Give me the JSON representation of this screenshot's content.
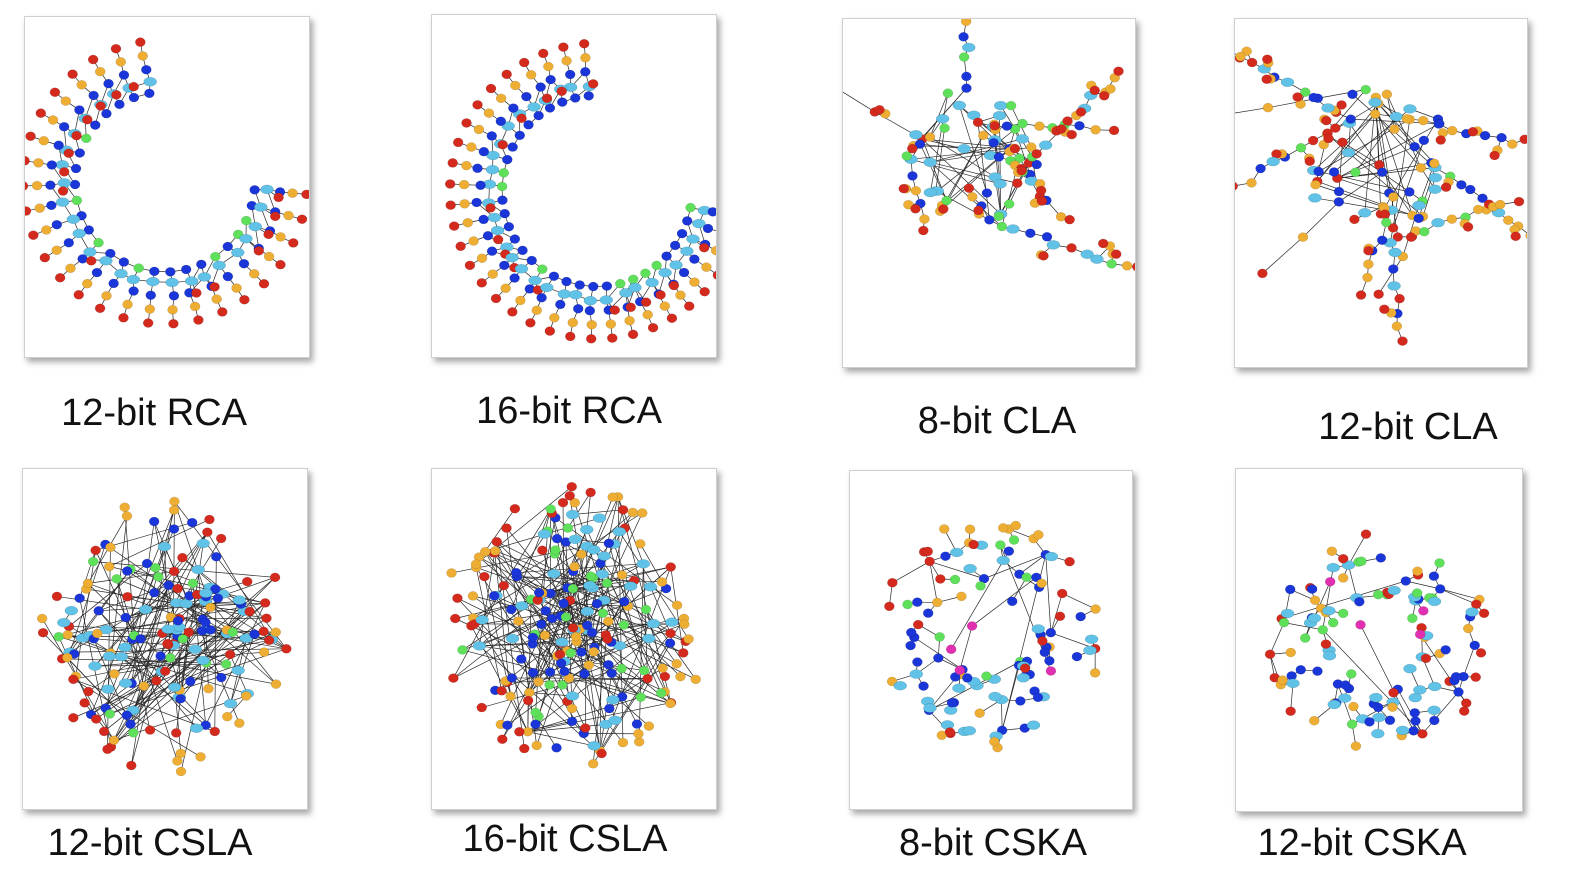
{
  "colors": {
    "red": "#d42a1e",
    "orange": "#eeae33",
    "cyan": "#5fc2e6",
    "blue": "#1a35d8",
    "green": "#5ee05a",
    "magenta": "#e02fb0",
    "edge": "#2a2a2a"
  },
  "graphs": [
    {
      "label": "12-bit RCA",
      "shape": "arc",
      "magenta": false
    },
    {
      "label": "16-bit RCA",
      "shape": "arc",
      "magenta": false
    },
    {
      "label": "8-bit CLA",
      "shape": "tree",
      "magenta": false
    },
    {
      "label": "12-bit CLA",
      "shape": "tree",
      "magenta": false
    },
    {
      "label": "12-bit CSLA",
      "shape": "blob",
      "magenta": false
    },
    {
      "label": "16-bit CSLA",
      "shape": "blob",
      "magenta": false
    },
    {
      "label": "8-bit CSKA",
      "shape": "ring",
      "magenta": true
    },
    {
      "label": "12-bit CSKA",
      "shape": "ring",
      "magenta": true
    }
  ]
}
